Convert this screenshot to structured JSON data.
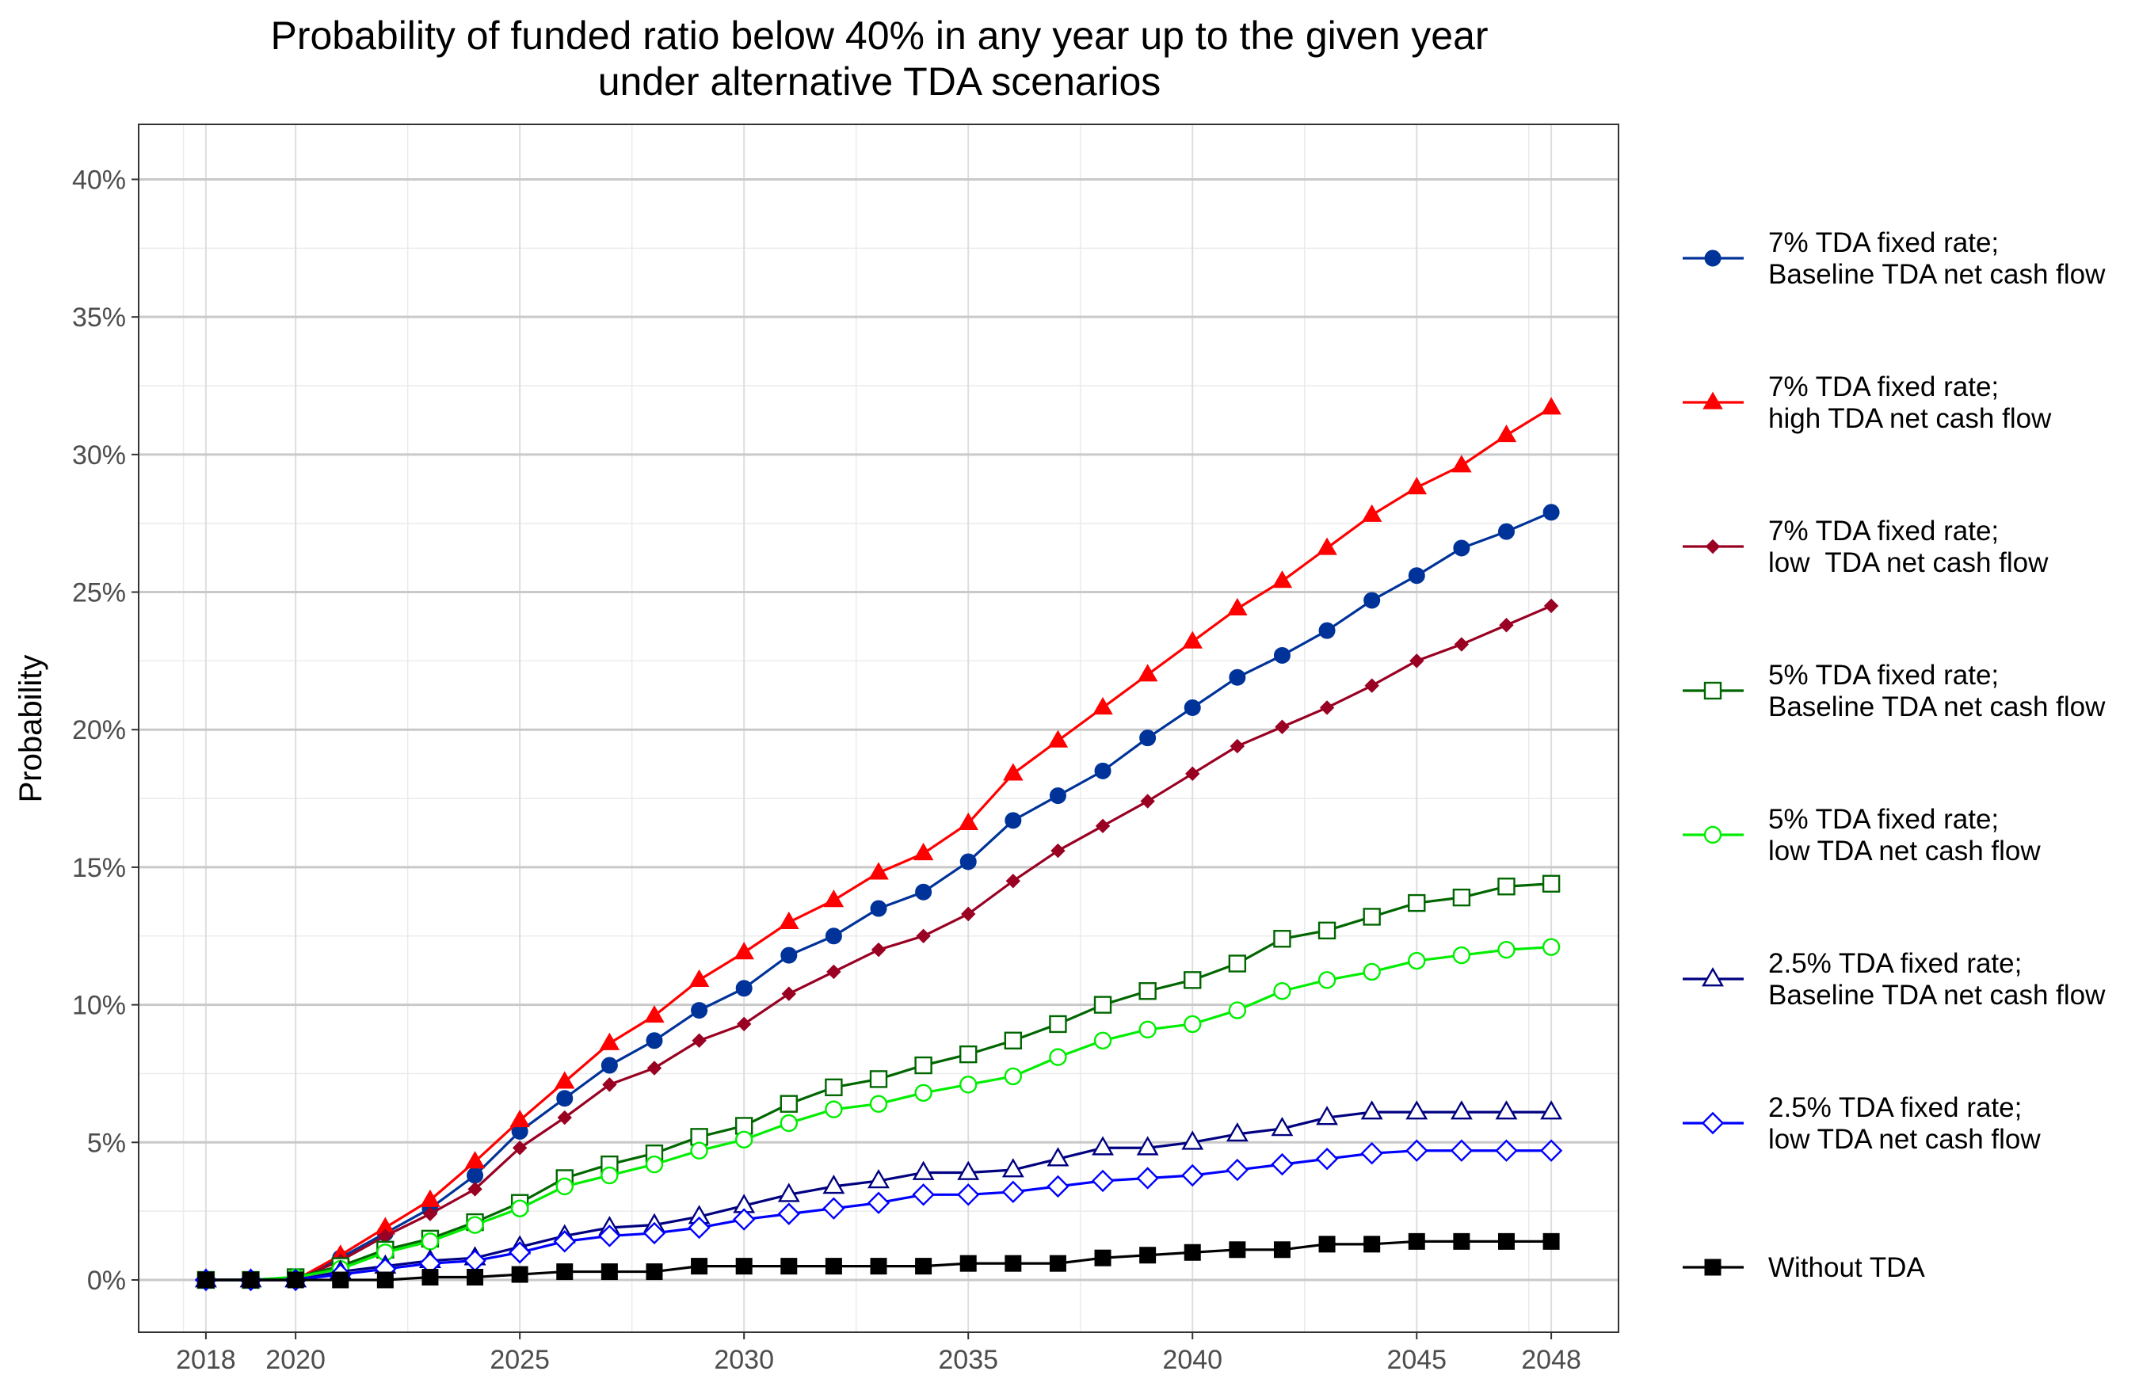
{
  "chart_data": {
    "type": "line",
    "title": "Probability of funded ratio below 40% in any year up to the given year\nunder alternative TDA scenarios",
    "xlabel": "",
    "ylabel": "Probability",
    "ylim": [
      -0.019,
      0.42
    ],
    "xlim": [
      2016.5,
      2049.5
    ],
    "yticks": [
      0,
      0.05,
      0.1,
      0.15,
      0.2,
      0.25,
      0.3,
      0.35,
      0.4
    ],
    "ytick_labels": [
      "0%",
      "5%",
      "10%",
      "15%",
      "20%",
      "25%",
      "30%",
      "35%",
      "40%"
    ],
    "xticks": [
      2018,
      2020,
      2025,
      2030,
      2035,
      2040,
      2045,
      2048
    ],
    "xtick_labels": [
      "2018",
      "2020",
      "2025",
      "2030",
      "2035",
      "2040",
      "2045",
      "2048"
    ],
    "grid": true,
    "legend_position": "right",
    "x": [
      2018,
      2019,
      2020,
      2021,
      2022,
      2023,
      2024,
      2025,
      2026,
      2027,
      2028,
      2029,
      2030,
      2031,
      2032,
      2033,
      2034,
      2035,
      2036,
      2037,
      2038,
      2039,
      2040,
      2041,
      2042,
      2043,
      2044,
      2045,
      2046,
      2047,
      2048
    ],
    "series": [
      {
        "name": "7% TDA fixed rate;\nBaseline TDA net cash flow",
        "color": "#003399",
        "marker": "circle-filled",
        "values": [
          0,
          0,
          0,
          0.008,
          0.017,
          0.026,
          0.038,
          0.054,
          0.066,
          0.078,
          0.087,
          0.098,
          0.106,
          0.118,
          0.125,
          0.135,
          0.141,
          0.152,
          0.167,
          0.176,
          0.185,
          0.197,
          0.208,
          0.219,
          0.227,
          0.236,
          0.247,
          0.256,
          0.266,
          0.272,
          0.279
        ]
      },
      {
        "name": "7% TDA fixed rate;\nhigh TDA net cash flow",
        "color": "#ff0000",
        "marker": "triangle-filled",
        "values": [
          0,
          0,
          0,
          0.009,
          0.019,
          0.029,
          0.043,
          0.058,
          0.072,
          0.086,
          0.096,
          0.109,
          0.119,
          0.13,
          0.138,
          0.148,
          0.155,
          0.166,
          0.184,
          0.196,
          0.208,
          0.22,
          0.232,
          0.244,
          0.254,
          0.266,
          0.278,
          0.288,
          0.296,
          0.307,
          0.317
        ]
      },
      {
        "name": "7% TDA fixed rate;\nlow  TDA net cash flow",
        "color": "#990022",
        "marker": "diamond-filled",
        "values": [
          0,
          0,
          0,
          0.007,
          0.016,
          0.024,
          0.033,
          0.048,
          0.059,
          0.071,
          0.077,
          0.087,
          0.093,
          0.104,
          0.112,
          0.12,
          0.125,
          0.133,
          0.145,
          0.156,
          0.165,
          0.174,
          0.184,
          0.194,
          0.201,
          0.208,
          0.216,
          0.225,
          0.231,
          0.238,
          0.245
        ]
      },
      {
        "name": "5% TDA fixed rate;\nBaseline TDA net cash flow",
        "color": "#006600",
        "marker": "square-open",
        "values": [
          0,
          0,
          0.001,
          0.005,
          0.011,
          0.015,
          0.021,
          0.028,
          0.037,
          0.042,
          0.046,
          0.052,
          0.056,
          0.064,
          0.07,
          0.073,
          0.078,
          0.082,
          0.087,
          0.093,
          0.1,
          0.105,
          0.109,
          0.115,
          0.124,
          0.127,
          0.132,
          0.137,
          0.139,
          0.143,
          0.144
        ]
      },
      {
        "name": "5% TDA fixed rate;\nlow TDA net cash flow",
        "color": "#00ee00",
        "marker": "circle-open",
        "values": [
          0,
          0,
          0.001,
          0.004,
          0.01,
          0.014,
          0.02,
          0.026,
          0.034,
          0.038,
          0.042,
          0.047,
          0.051,
          0.057,
          0.062,
          0.064,
          0.068,
          0.071,
          0.074,
          0.081,
          0.087,
          0.091,
          0.093,
          0.098,
          0.105,
          0.109,
          0.112,
          0.116,
          0.118,
          0.12,
          0.121
        ]
      },
      {
        "name": "2.5% TDA fixed rate;\nBaseline TDA net cash flow",
        "color": "#000080",
        "marker": "triangle-open",
        "values": [
          0,
          0,
          0,
          0.003,
          0.005,
          0.007,
          0.008,
          0.012,
          0.016,
          0.019,
          0.02,
          0.023,
          0.027,
          0.031,
          0.034,
          0.036,
          0.039,
          0.039,
          0.04,
          0.044,
          0.048,
          0.048,
          0.05,
          0.053,
          0.055,
          0.059,
          0.061,
          0.061,
          0.061,
          0.061,
          0.061
        ]
      },
      {
        "name": "2.5% TDA fixed rate;\nlow TDA net cash flow",
        "color": "#0000ff",
        "marker": "diamond-open",
        "values": [
          0,
          0,
          0,
          0.002,
          0.004,
          0.006,
          0.007,
          0.01,
          0.014,
          0.016,
          0.017,
          0.019,
          0.022,
          0.024,
          0.026,
          0.028,
          0.031,
          0.031,
          0.032,
          0.034,
          0.036,
          0.037,
          0.038,
          0.04,
          0.042,
          0.044,
          0.046,
          0.047,
          0.047,
          0.047,
          0.047
        ]
      },
      {
        "name": "Without TDA",
        "color": "#000000",
        "marker": "square-filled",
        "values": [
          0,
          0,
          0,
          0,
          0,
          0.001,
          0.001,
          0.002,
          0.003,
          0.003,
          0.003,
          0.005,
          0.005,
          0.005,
          0.005,
          0.005,
          0.005,
          0.006,
          0.006,
          0.006,
          0.008,
          0.009,
          0.01,
          0.011,
          0.011,
          0.013,
          0.013,
          0.014,
          0.014,
          0.014,
          0.014
        ]
      }
    ]
  }
}
